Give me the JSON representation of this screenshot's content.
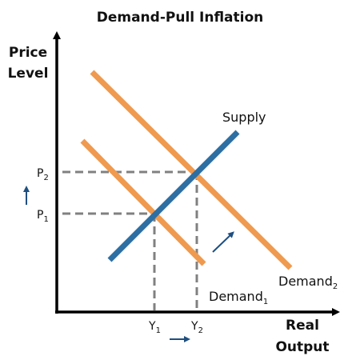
{
  "title": "Demand-Pull Inflation",
  "axes": {
    "y_label_line1": "Price",
    "y_label_line2": "Level",
    "x_label_line1": "Real",
    "x_label_line2": "Output"
  },
  "curves": {
    "supply": {
      "label": "Supply",
      "color": "#2e6fa3"
    },
    "demand1": {
      "label_base": "Demand",
      "label_sub": "1",
      "color": "#ef9a4f"
    },
    "demand2": {
      "label_base": "Demand",
      "label_sub": "2",
      "color": "#ef9a4f"
    }
  },
  "ticks": {
    "p1": {
      "base": "P",
      "sub": "1"
    },
    "p2": {
      "base": "P",
      "sub": "2"
    },
    "y1": {
      "base": "Y",
      "sub": "1"
    },
    "y2": {
      "base": "Y",
      "sub": "2"
    }
  },
  "colors": {
    "axis": "#000000",
    "guide": "#808080",
    "arrow": "#1f4f80"
  }
}
